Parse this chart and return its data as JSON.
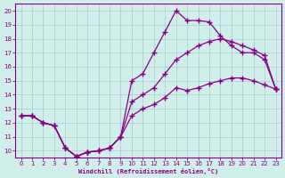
{
  "bg_color": "#d0eeea",
  "line_color": "#880088",
  "grid_color": "#aacccc",
  "marker": "+",
  "markersize": 4,
  "linewidth": 0.9,
  "xlim": [
    -0.5,
    23.5
  ],
  "ylim": [
    9.5,
    20.5
  ],
  "xticks": [
    0,
    1,
    2,
    3,
    4,
    5,
    6,
    7,
    8,
    9,
    10,
    11,
    12,
    13,
    14,
    15,
    16,
    17,
    18,
    19,
    20,
    21,
    22,
    23
  ],
  "yticks": [
    10,
    11,
    12,
    13,
    14,
    15,
    16,
    17,
    18,
    19,
    20
  ],
  "xlabel": "Windchill (Refroidissement éolien,°C)",
  "curve1_x": [
    0,
    1,
    2,
    3,
    4,
    5,
    6,
    7,
    8,
    9,
    10,
    11,
    12,
    13,
    14,
    15,
    16,
    17,
    18,
    19,
    20,
    21,
    22,
    23
  ],
  "curve1_y": [
    12.5,
    12.5,
    12.0,
    11.8,
    10.2,
    9.6,
    9.9,
    10.0,
    10.2,
    11.0,
    15.0,
    15.5,
    17.0,
    18.5,
    20.0,
    19.3,
    19.3,
    19.2,
    18.2,
    17.5,
    17.0,
    17.0,
    16.5,
    14.4
  ],
  "curve2_x": [
    0,
    1,
    2,
    3,
    4,
    5,
    6,
    7,
    8,
    9,
    10,
    11,
    12,
    13,
    14,
    15,
    16,
    17,
    18,
    19,
    20,
    21,
    22,
    23
  ],
  "curve2_y": [
    12.5,
    12.5,
    12.0,
    11.8,
    10.2,
    9.6,
    9.9,
    10.0,
    10.2,
    11.0,
    13.5,
    14.0,
    14.5,
    15.5,
    16.5,
    17.0,
    17.5,
    17.8,
    18.0,
    17.8,
    17.5,
    17.2,
    16.8,
    14.4
  ],
  "curve3_x": [
    0,
    1,
    2,
    3,
    4,
    5,
    6,
    7,
    8,
    9,
    10,
    11,
    12,
    13,
    14,
    15,
    16,
    17,
    18,
    19,
    20,
    21,
    22,
    23
  ],
  "curve3_y": [
    12.5,
    12.5,
    12.0,
    11.8,
    10.2,
    9.6,
    9.9,
    10.0,
    10.2,
    11.0,
    12.5,
    13.0,
    13.3,
    13.8,
    14.5,
    14.3,
    14.5,
    14.8,
    15.0,
    15.2,
    15.2,
    15.0,
    14.7,
    14.4
  ]
}
